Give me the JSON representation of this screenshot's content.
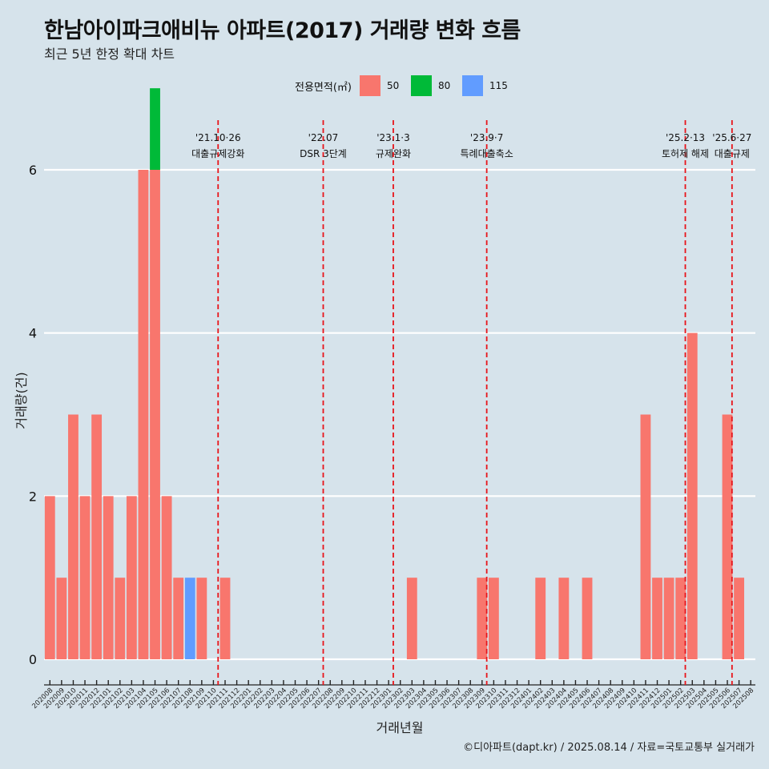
{
  "title": "한남아이파크애비뉴 아파트(2017) 거래량 변화 흐름",
  "subtitle": "최근 5년 한정 확대 차트",
  "caption": "©디아파트(dapt.kr) / 2025.08.14 / 자료=국토교통부 실거래가",
  "legend": {
    "title": "전용면적(㎡)",
    "items": [
      {
        "label": "50",
        "color": "#F8766D"
      },
      {
        "label": "80",
        "color": "#00BA38"
      },
      {
        "label": "115",
        "color": "#619CFF"
      }
    ]
  },
  "chart_data": {
    "type": "bar",
    "xlabel": "거래년월",
    "ylabel": "거래량(건)",
    "ylim": [
      0,
      6.3
    ],
    "yticks": [
      0,
      2,
      4,
      6
    ],
    "grid": true,
    "legend_position": "top",
    "categories": [
      "202008",
      "202009",
      "202010",
      "202011",
      "202012",
      "202101",
      "202102",
      "202103",
      "202104",
      "202105",
      "202106",
      "202107",
      "202108",
      "202109",
      "202110",
      "202111",
      "202112",
      "202201",
      "202202",
      "202203",
      "202204",
      "202205",
      "202206",
      "202207",
      "202208",
      "202209",
      "202210",
      "202211",
      "202212",
      "202301",
      "202302",
      "202303",
      "202304",
      "202305",
      "202306",
      "202307",
      "202308",
      "202309",
      "202310",
      "202311",
      "202312",
      "202401",
      "202402",
      "202403",
      "202404",
      "202405",
      "202406",
      "202407",
      "202408",
      "202409",
      "202410",
      "202411",
      "202412",
      "202501",
      "202502",
      "202503",
      "202504",
      "202505",
      "202506",
      "202507",
      "202508"
    ],
    "series": [
      {
        "name": "50",
        "color": "#F8766D",
        "values": [
          2,
          1,
          3,
          2,
          3,
          2,
          1,
          2,
          6,
          6,
          2,
          1,
          0,
          1,
          0,
          1,
          0,
          0,
          0,
          0,
          0,
          0,
          0,
          0,
          0,
          0,
          0,
          0,
          0,
          0,
          0,
          1,
          0,
          0,
          0,
          0,
          0,
          1,
          1,
          0,
          0,
          0,
          1,
          0,
          1,
          0,
          1,
          0,
          0,
          0,
          0,
          3,
          1,
          1,
          1,
          4,
          0,
          0,
          3,
          1,
          0
        ]
      },
      {
        "name": "80",
        "color": "#00BA38",
        "values": [
          0,
          0,
          0,
          0,
          0,
          0,
          0,
          0,
          0,
          1,
          0,
          0,
          0,
          0,
          0,
          0,
          0,
          0,
          0,
          0,
          0,
          0,
          0,
          0,
          0,
          0,
          0,
          0,
          0,
          0,
          0,
          0,
          0,
          0,
          0,
          0,
          0,
          0,
          0,
          0,
          0,
          0,
          0,
          0,
          0,
          0,
          0,
          0,
          0,
          0,
          0,
          0,
          0,
          0,
          0,
          0,
          0,
          0,
          0,
          0,
          0
        ]
      },
      {
        "name": "115",
        "color": "#619CFF",
        "values": [
          0,
          0,
          0,
          0,
          0,
          0,
          0,
          0,
          0,
          0,
          0,
          0,
          1,
          0,
          0,
          0,
          0,
          0,
          0,
          0,
          0,
          0,
          0,
          0,
          0,
          0,
          0,
          0,
          0,
          0,
          0,
          0,
          0,
          0,
          0,
          0,
          0,
          0,
          0,
          0,
          0,
          0,
          0,
          0,
          0,
          0,
          0,
          0,
          0,
          0,
          0,
          0,
          0,
          0,
          0,
          0,
          0,
          0,
          0,
          0,
          0
        ]
      }
    ],
    "annotations": [
      {
        "date": "'21.10·26",
        "label": "대출규제강화",
        "x": 14.4
      },
      {
        "date": "'22.07",
        "label": "DSR 3단계",
        "x": 23.4
      },
      {
        "date": "'23.1·3",
        "label": "규제완화",
        "x": 29.4
      },
      {
        "date": "'23.9·7",
        "label": "특례대출축소",
        "x": 37.4
      },
      {
        "date": "'25.2·13",
        "label": "토허제 해제",
        "x": 54.4
      },
      {
        "date": "'25.6·27",
        "label": "대출규제",
        "x": 58.4
      }
    ]
  }
}
